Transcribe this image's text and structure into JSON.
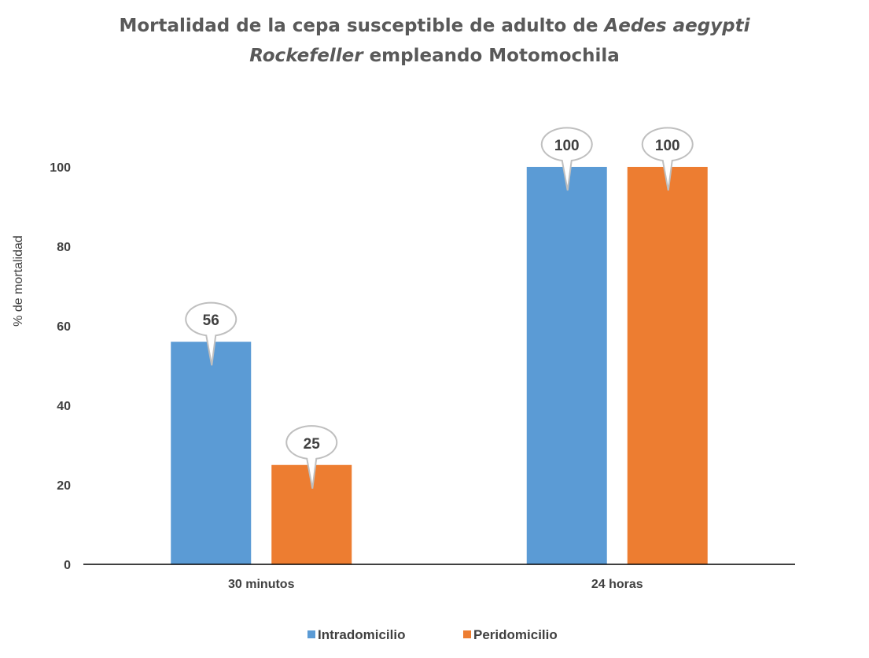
{
  "chart_data": {
    "type": "bar",
    "title": {
      "line1_part1": "Mortalidad de la cepa  susceptible de adulto de ",
      "line1_italic": "Aedes aegypti",
      "line2_italic": "Rockefeller",
      "line2_part2": "  empleando Motomochila"
    },
    "xlabel": "",
    "ylabel": "% de mortalidad",
    "ylim": [
      0,
      100
    ],
    "yticks": [
      0,
      20,
      40,
      60,
      80,
      100
    ],
    "grid": false,
    "legend_position": "bottom",
    "categories": [
      "30 minutos",
      "24  horas"
    ],
    "series": [
      {
        "name": "Intradomicilio",
        "values": [
          56,
          100
        ],
        "color": "#5B9BD5"
      },
      {
        "name": "Peridomicilio",
        "values": [
          25,
          100
        ],
        "color": "#ED7D31"
      }
    ],
    "data_labels": true
  }
}
